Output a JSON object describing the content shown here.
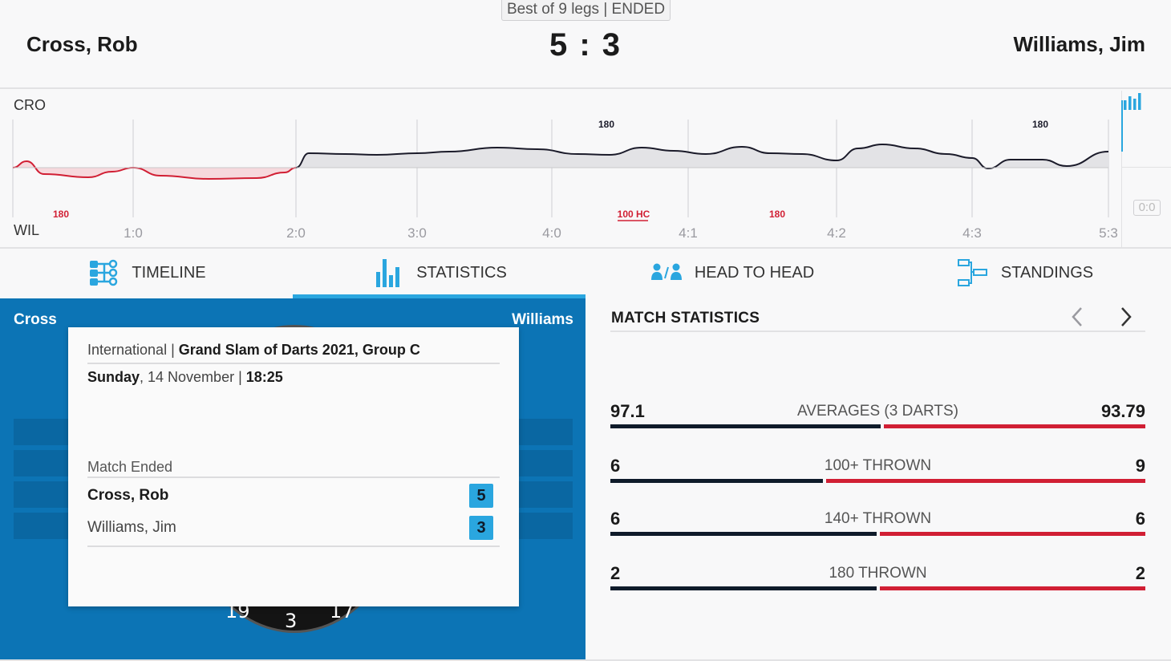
{
  "header": {
    "format": "Best of 9 legs | ENDED",
    "player_left": "Cross, Rob",
    "player_right": "Williams, Jim",
    "score": "5 : 3"
  },
  "timeline": {
    "top_label": "CRO",
    "bottom_label": "WIL",
    "x_ticks": [
      "1:0",
      "2:0",
      "3:0",
      "4:0",
      "4:1",
      "4:2",
      "4:3",
      "5:3"
    ],
    "top_markers": [
      {
        "text": "180",
        "at_leg": 4.4
      },
      {
        "text": "180",
        "at_leg": 7.5
      }
    ],
    "bottom_markers": [
      {
        "text": "180",
        "at_leg": 0.4
      },
      {
        "text": "100 HC",
        "at_leg": 4.6
      },
      {
        "text": "180",
        "at_leg": 5.6
      }
    ],
    "top_color": "#1b1b2a",
    "bottom_color": "#d11f34",
    "side_box": "0:0"
  },
  "tabs": [
    {
      "label": "TIMELINE",
      "icon": "timeline-icon",
      "active": false
    },
    {
      "label": "STATISTICS",
      "icon": "bar-chart-icon",
      "active": true
    },
    {
      "label": "HEAD TO HEAD",
      "icon": "head-to-head-icon",
      "active": false
    },
    {
      "label": "STANDINGS",
      "icon": "bracket-icon",
      "active": false
    }
  ],
  "left_panel": {
    "name_left": "Cross",
    "name_right": "Williams",
    "board_numbers": [
      "19",
      "3",
      "17"
    ]
  },
  "info_card": {
    "category": "International",
    "separator": " | ",
    "tournament": "Grand Slam of Darts 2021, Group C",
    "day": "Sunday",
    "date": ", 14 November | ",
    "time": "18:25",
    "status": "Match Ended",
    "players": [
      {
        "name": "Cross, Rob",
        "score": "5",
        "winner": true
      },
      {
        "name": "Williams, Jim",
        "score": "3",
        "winner": false
      }
    ]
  },
  "match_statistics": {
    "title": "MATCH STATISTICS",
    "accent_left": "#0f1b2a",
    "accent_right": "#d11f34",
    "stats": [
      {
        "label": "AVERAGES (3 DARTS)",
        "left": "97.1",
        "right": "93.79",
        "left_value": 97.1,
        "right_value": 93.79
      },
      {
        "label": "100+ THROWN",
        "left": "6",
        "right": "9",
        "left_value": 6,
        "right_value": 9
      },
      {
        "label": "140+ THROWN",
        "left": "6",
        "right": "6",
        "left_value": 6,
        "right_value": 6
      },
      {
        "label": "180 THROWN",
        "left": "2",
        "right": "2",
        "left_value": 2,
        "right_value": 2
      }
    ]
  },
  "colors": {
    "accent": "#2aa6df",
    "panel_blue": "#0c74b5"
  }
}
